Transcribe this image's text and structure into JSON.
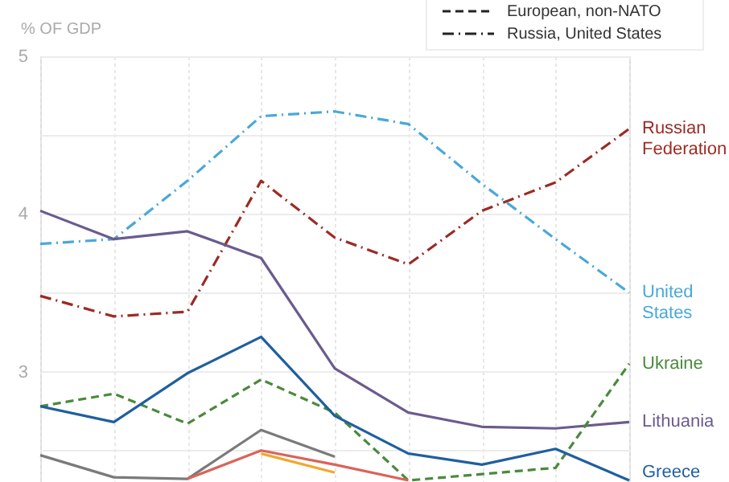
{
  "chart_data": {
    "type": "line",
    "ylabel": "% OF GDP",
    "categories": [
      null,
      null,
      null,
      null,
      null,
      null,
      null,
      null,
      null
    ],
    "ylim": [
      2.3,
      5
    ],
    "yticks": [
      {
        "value": 2.5,
        "label": null
      },
      3,
      {
        "value": 3.5,
        "label": null
      },
      4,
      {
        "value": 4.5,
        "label": null
      },
      5
    ],
    "grid": true,
    "tick_labels": "y",
    "annotations": [
      "European, non-NATO",
      "Russia, United States"
    ],
    "series": [
      {
        "name": "United States",
        "color": "#4aa8d8",
        "line_style": "dashdot",
        "values": [
          3.81,
          3.84,
          4.21,
          4.62,
          4.65,
          4.57,
          4.19,
          3.84,
          3.5
        ]
      },
      {
        "name": "Russian Federation",
        "color": "#9b2b25",
        "line_style": "dashdot",
        "values": [
          3.48,
          3.35,
          3.38,
          4.21,
          3.85,
          3.68,
          4.02,
          4.2,
          4.54
        ]
      },
      {
        "name": "Lithuania",
        "color": "#6b5b8e",
        "line_style": "solid",
        "values": [
          4.02,
          3.84,
          3.89,
          3.72,
          3.02,
          2.74,
          2.65,
          2.64,
          2.68
        ]
      },
      {
        "name": "Ukraine",
        "color": "#4a8a3c",
        "line_style": "dashed",
        "values": [
          2.78,
          2.86,
          2.67,
          2.95,
          2.74,
          2.31,
          2.35,
          2.39,
          3.05
        ]
      },
      {
        "name": "Greece",
        "color": "#1f5f9f",
        "line_style": "solid",
        "values": [
          2.78,
          2.68,
          2.99,
          3.22,
          2.72,
          2.48,
          2.41,
          2.51,
          2.31
        ]
      },
      {
        "color": "#7a7a7a",
        "line_style": "solid",
        "values": [
          2.47,
          2.33,
          2.32,
          2.63,
          2.46,
          null,
          null,
          null,
          null
        ]
      },
      {
        "color": "#d9645a",
        "line_style": "solid",
        "values": [
          null,
          null,
          2.32,
          2.5,
          2.41,
          2.31,
          null,
          null,
          null
        ]
      },
      {
        "color": "#f0a830",
        "line_style": "solid",
        "values": [
          null,
          null,
          null,
          2.48,
          2.36,
          null,
          null,
          null,
          null
        ]
      }
    ]
  }
}
